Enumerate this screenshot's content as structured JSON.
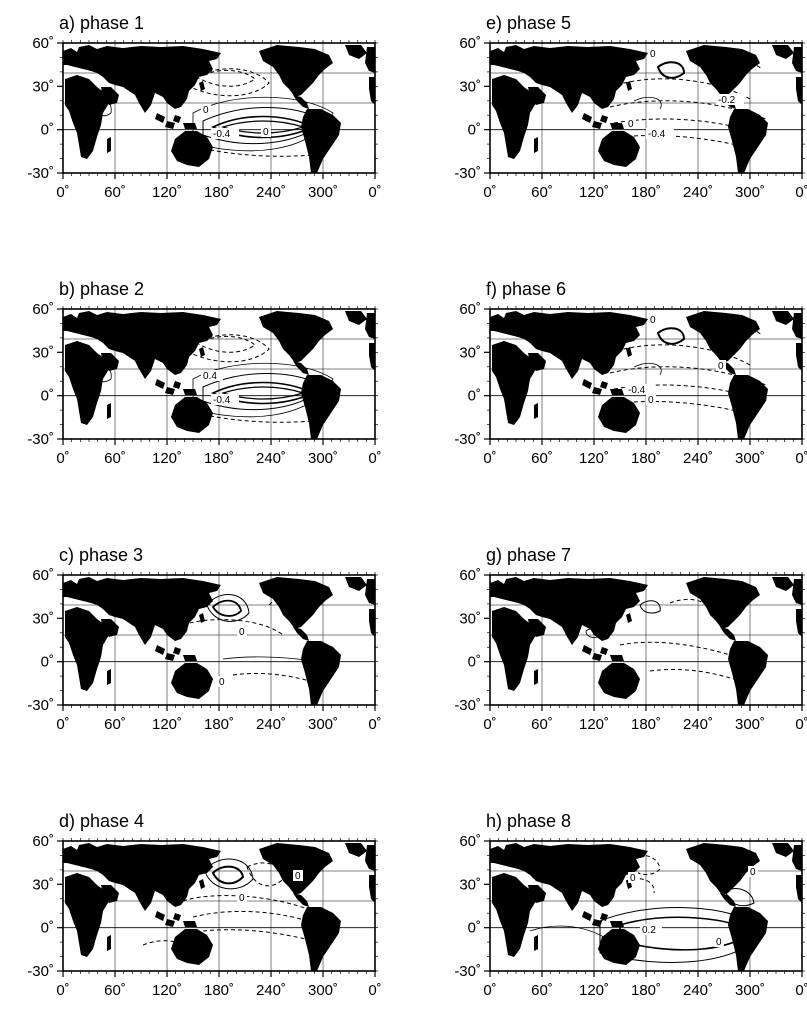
{
  "figure": {
    "panels": [
      {
        "id": "a",
        "title": "a)  phase 1",
        "labels": [
          "0",
          "-0.4",
          "0"
        ],
        "pattern": "warm-east-pacific"
      },
      {
        "id": "b",
        "title": "b)  phase 2",
        "labels": [
          "0.4",
          "-0.4"
        ],
        "pattern": "warm-east-pacific"
      },
      {
        "id": "c",
        "title": "c)  phase 3",
        "labels": [
          "0",
          "0"
        ],
        "pattern": "weak-north-pacific"
      },
      {
        "id": "d",
        "title": "d)  phase 4",
        "labels": [
          "0",
          "0"
        ],
        "pattern": "cool-north-pacific-high"
      },
      {
        "id": "e",
        "title": "e)  phase 5",
        "labels": [
          "0",
          "-0.2",
          "0",
          "-0.4"
        ],
        "pattern": "cool-pacific"
      },
      {
        "id": "f",
        "title": "f)  phase 6",
        "labels": [
          "0",
          "0",
          "-0.4",
          "0"
        ],
        "pattern": "cool-pacific"
      },
      {
        "id": "g",
        "title": "g)  phase 7",
        "labels": [],
        "pattern": "weak-cool"
      },
      {
        "id": "h",
        "title": "h)  phase 8",
        "labels": [
          "0",
          "0.2",
          "0",
          "0"
        ],
        "pattern": "warm-onset"
      }
    ],
    "x_ticks": [
      "0˚",
      "60˚",
      "120˚",
      "180˚",
      "240˚",
      "300˚",
      "0˚"
    ],
    "y_ticks": [
      "60˚",
      "30˚",
      "0˚",
      "-30˚"
    ],
    "colors": {
      "land": "#000000",
      "frame": "#000000",
      "background": "#ffffff"
    }
  }
}
